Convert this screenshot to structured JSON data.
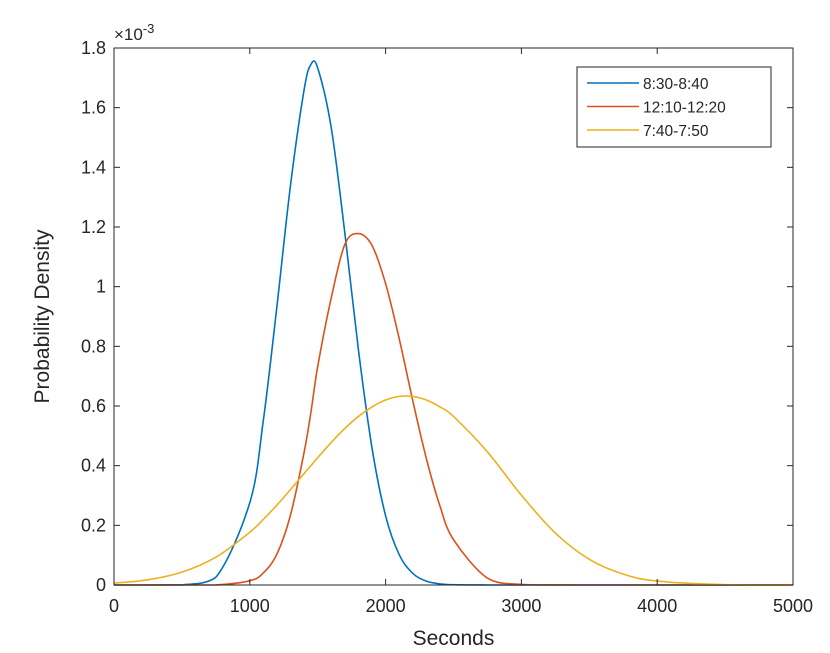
{
  "chart_data": {
    "type": "line",
    "xlabel": "Seconds",
    "ylabel": "Probability Density",
    "xlim": [
      0,
      5000
    ],
    "ylim": [
      0,
      0.0018
    ],
    "y_exponent_label": "×10",
    "y_exponent_power": "-3",
    "x_ticks": [
      {
        "value": 0,
        "label": "0"
      },
      {
        "value": 1000,
        "label": "1000"
      },
      {
        "value": 2000,
        "label": "2000"
      },
      {
        "value": 3000,
        "label": "3000"
      },
      {
        "value": 4000,
        "label": "4000"
      },
      {
        "value": 5000,
        "label": "5000"
      }
    ],
    "y_ticks": [
      {
        "value": 0,
        "label": "0"
      },
      {
        "value": 0.0002,
        "label": "0.2"
      },
      {
        "value": 0.0004,
        "label": "0.4"
      },
      {
        "value": 0.0006,
        "label": "0.6"
      },
      {
        "value": 0.0008,
        "label": "0.8"
      },
      {
        "value": 0.001,
        "label": "1"
      },
      {
        "value": 0.0012,
        "label": "1.2"
      },
      {
        "value": 0.0014,
        "label": "1.4"
      },
      {
        "value": 0.0016,
        "label": "1.6"
      },
      {
        "value": 0.0018,
        "label": "1.8"
      }
    ],
    "grid": false,
    "legend_position": "top-right",
    "x": [
      0,
      250,
      500,
      750,
      1000,
      1100,
      1200,
      1300,
      1400,
      1450,
      1500,
      1600,
      1700,
      1800,
      1900,
      2000,
      2100,
      2200,
      2300,
      2400,
      2500,
      2750,
      3000,
      3250,
      3500,
      3750,
      4000,
      4500,
      5000
    ],
    "series": [
      {
        "name": "8:30-8:40",
        "color": "#0072BD",
        "values": [
          0,
          0,
          3e-07,
          2.58e-05,
          0.000276,
          0.000553,
          0.000935,
          0.001341,
          0.00166,
          0.001745,
          0.001733,
          0.001532,
          0.001179,
          0.000788,
          0.000459,
          0.000232,
          0.000102,
          3.91e-05,
          1.3e-05,
          3.8e-06,
          9e-07,
          1e-08,
          0,
          0,
          0,
          0,
          0,
          0,
          0
        ]
      },
      {
        "name": "12:10-12:20",
        "color": "#D95319",
        "values": [
          0,
          0,
          0,
          1e-07,
          1.41e-05,
          4.07e-05,
          0.000104,
          0.000235,
          0.000445,
          0.000579,
          0.000732,
          0.000963,
          0.001142,
          0.001178,
          0.001138,
          0.00101,
          0.000826,
          0.000618,
          0.000424,
          0.000265,
          0.000152,
          2.32e-05,
          2.1e-06,
          1e-07,
          0,
          0,
          0,
          0,
          0
        ]
      },
      {
        "name": "7:40-7:50",
        "color": "#EDB120",
        "values": [
          6.2e-06,
          1.74e-05,
          4.3e-05,
          9.31e-05,
          0.000177,
          0.00022,
          0.000268,
          0.00032,
          0.000374,
          0.0004,
          0.000427,
          0.000478,
          0.000525,
          0.000565,
          0.000597,
          0.00062,
          0.000632,
          0.000632,
          0.00062,
          0.000597,
          0.000565,
          0.000446,
          0.000301,
          0.000174,
          8.6e-05,
          3.63e-05,
          1.31e-05,
          1.1e-06,
          1e-07
        ]
      }
    ]
  }
}
